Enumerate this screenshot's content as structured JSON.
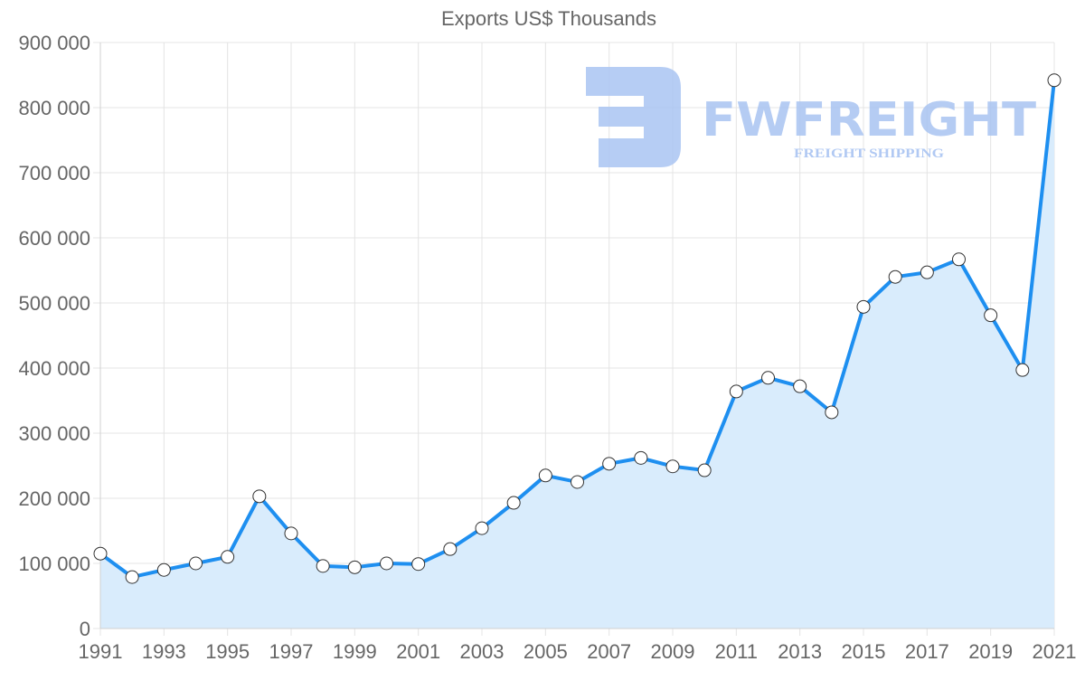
{
  "chart_data": {
    "type": "line",
    "title": "Exports US$ Thousands",
    "xlabel": "",
    "ylabel": "",
    "ylim": [
      0,
      900000
    ],
    "xlim": [
      1991,
      2021
    ],
    "grid": true,
    "legend": "none",
    "fill": "area",
    "y_ticks": [
      0,
      100000,
      200000,
      300000,
      400000,
      500000,
      600000,
      700000,
      800000,
      900000
    ],
    "y_tick_labels": [
      "0",
      "100 000",
      "200 000",
      "300 000",
      "400 000",
      "500 000",
      "600 000",
      "700 000",
      "800 000",
      "900 000"
    ],
    "x_tick_labels": [
      "1991",
      "1993",
      "1995",
      "1997",
      "1999",
      "2001",
      "2003",
      "2005",
      "2007",
      "2009",
      "2011",
      "2013",
      "2015",
      "2017",
      "2019",
      "2021"
    ],
    "x": [
      1991,
      1992,
      1993,
      1994,
      1995,
      1996,
      1997,
      1998,
      1999,
      2000,
      2001,
      2002,
      2003,
      2004,
      2005,
      2006,
      2007,
      2008,
      2009,
      2010,
      2011,
      2012,
      2013,
      2014,
      2015,
      2016,
      2017,
      2018,
      2019,
      2020,
      2021
    ],
    "series": [
      {
        "name": "Exports",
        "values": [
          115000,
          79000,
          90000,
          100000,
          110000,
          203000,
          146000,
          96000,
          94000,
          100000,
          99000,
          122000,
          154000,
          193000,
          235000,
          225000,
          253000,
          262000,
          249000,
          243000,
          364000,
          385000,
          372000,
          332000,
          494000,
          540000,
          547000,
          567000,
          481000,
          397000,
          842000
        ]
      }
    ]
  },
  "colors": {
    "line": "#1e8ff0",
    "fill": "#d9ecfc",
    "marker_fill": "#ffffff",
    "marker_stroke": "#333333",
    "text": "#666666",
    "watermark": "#a9c4f2"
  },
  "watermark": {
    "brand": "FWFREIGHT",
    "tagline": "FREIGHT SHIPPING"
  }
}
